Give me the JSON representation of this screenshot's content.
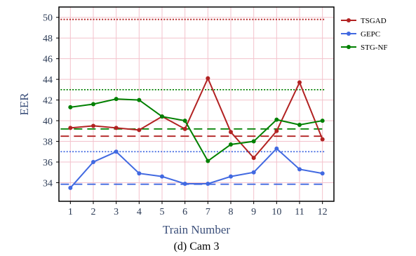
{
  "chart_data": {
    "type": "line",
    "caption": "(d) Cam 3",
    "xlabel": "Train Number",
    "ylabel": "EER",
    "x": [
      1,
      2,
      3,
      4,
      5,
      6,
      7,
      8,
      9,
      10,
      11,
      12
    ],
    "xlim": [
      0.5,
      12.5
    ],
    "ylim": [
      32.2,
      51.0
    ],
    "yticks": [
      34,
      36,
      38,
      40,
      42,
      44,
      46,
      48,
      50
    ],
    "grid": true,
    "legend_position": "top-right",
    "series": [
      {
        "name": "TSGAD",
        "color": "#b22222",
        "values": [
          39.3,
          39.5,
          39.3,
          39.1,
          40.4,
          39.2,
          44.1,
          38.9,
          36.4,
          39.0,
          43.7,
          38.2
        ]
      },
      {
        "name": "GEPC",
        "color": "#4169e1",
        "values": [
          33.5,
          36.0,
          37.0,
          34.9,
          34.6,
          33.9,
          33.9,
          34.6,
          35.0,
          37.3,
          35.3,
          34.9
        ]
      },
      {
        "name": "STG-NF",
        "color": "#008000",
        "values": [
          41.3,
          41.6,
          42.1,
          42.0,
          40.4,
          40.0,
          36.1,
          37.7,
          38.0,
          40.1,
          39.6,
          40.0
        ]
      }
    ],
    "reference_lines": [
      {
        "series": "TSGAD",
        "style": "dotted",
        "y": 49.8,
        "color": "#b22222"
      },
      {
        "series": "TSGAD",
        "style": "dashed",
        "y": 38.5,
        "color": "#b22222"
      },
      {
        "series": "GEPC",
        "style": "dotted",
        "y": 37.0,
        "color": "#4169e1"
      },
      {
        "series": "GEPC",
        "style": "dashed",
        "y": 33.85,
        "color": "#4169e1"
      },
      {
        "series": "STG-NF",
        "style": "dotted",
        "y": 43.0,
        "color": "#008000"
      },
      {
        "series": "STG-NF",
        "style": "dashed",
        "y": 39.2,
        "color": "#008000"
      }
    ]
  }
}
